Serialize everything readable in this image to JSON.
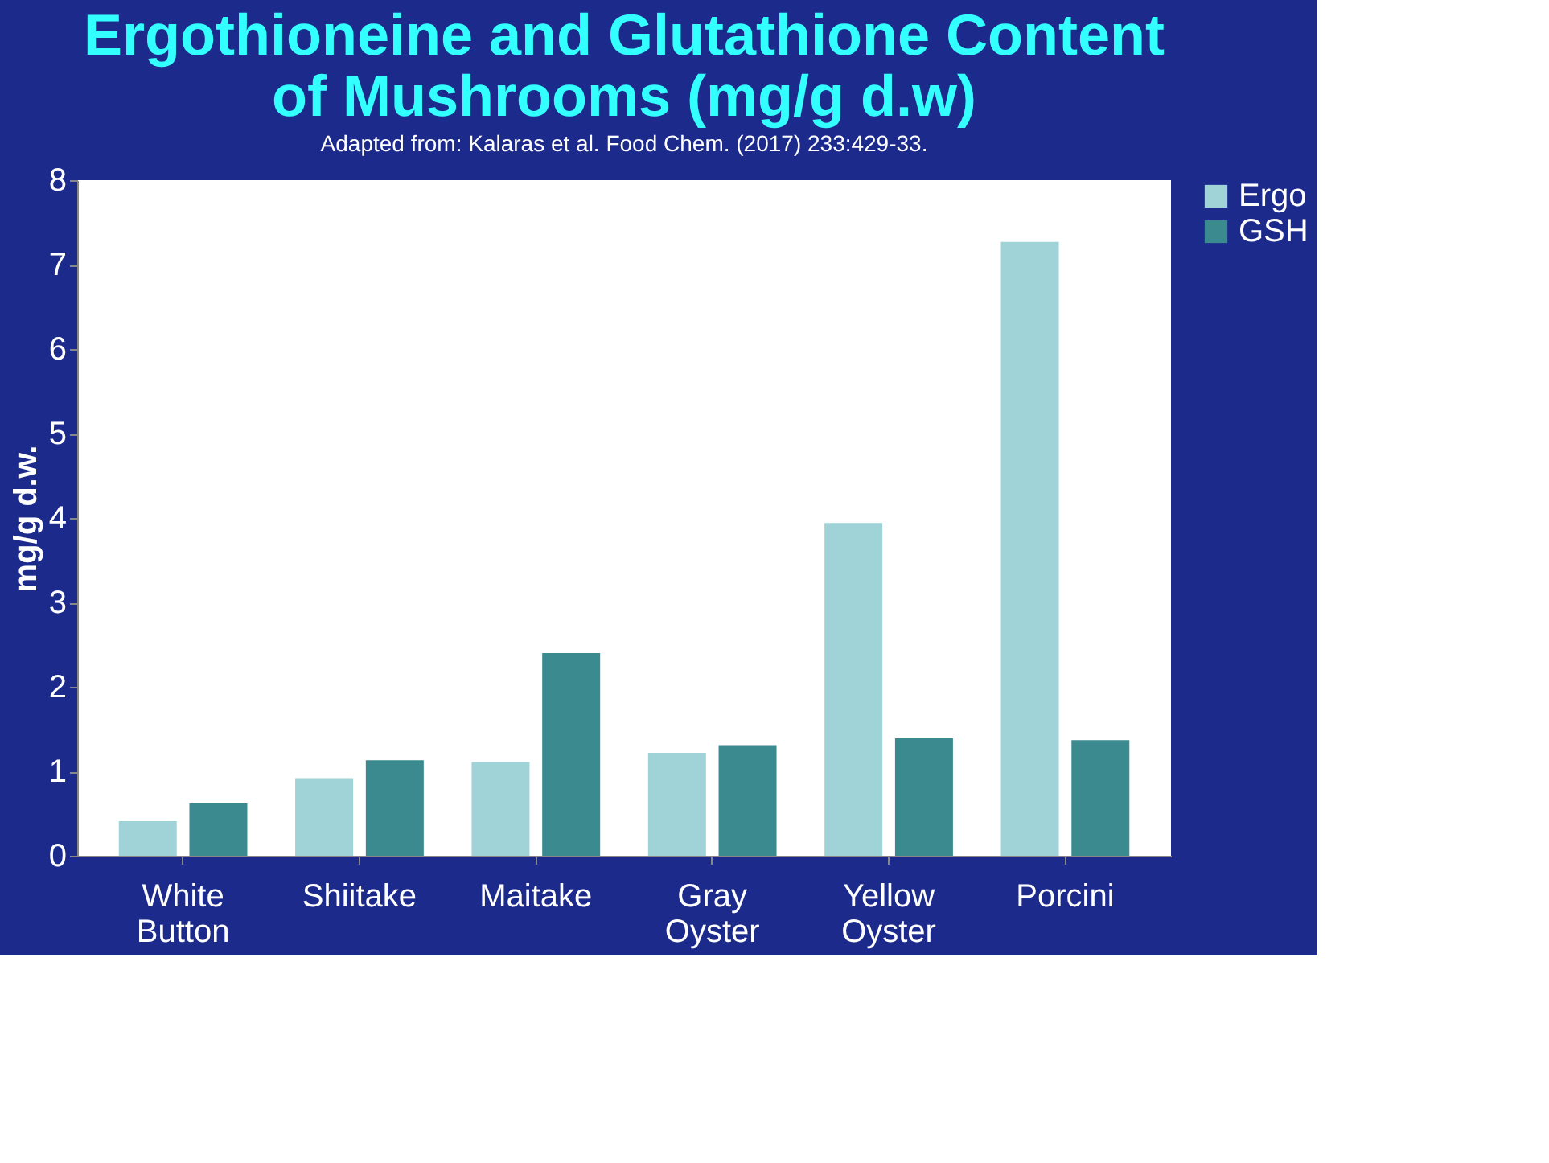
{
  "chart_data": {
    "type": "bar",
    "title": "Ergothioneine and Glutathione Content of Mushrooms (mg/g d.w)",
    "ylabel": "mg/g d.w.",
    "categories": [
      "White Button",
      "Shiitake",
      "Maitake",
      "Gray Oyster",
      "Yellow Oyster",
      "Porcini"
    ],
    "series": [
      {
        "name": "Ergo",
        "color": "#9fd3d8",
        "values": [
          0.41,
          0.92,
          1.11,
          1.22,
          3.94,
          7.27
        ]
      },
      {
        "name": "GSH",
        "color": "#3a8a8f",
        "values": [
          0.62,
          1.13,
          2.4,
          1.31,
          1.39,
          1.37
        ]
      }
    ],
    "ylim": [
      0,
      8
    ],
    "yticks": [
      0,
      1,
      2,
      3,
      4,
      5,
      6,
      7,
      8
    ],
    "grid": false,
    "legend": "right",
    "annotations": [
      "Adapted from: Kalaras et al. Food Chem. (2017) 233:429-33."
    ]
  }
}
